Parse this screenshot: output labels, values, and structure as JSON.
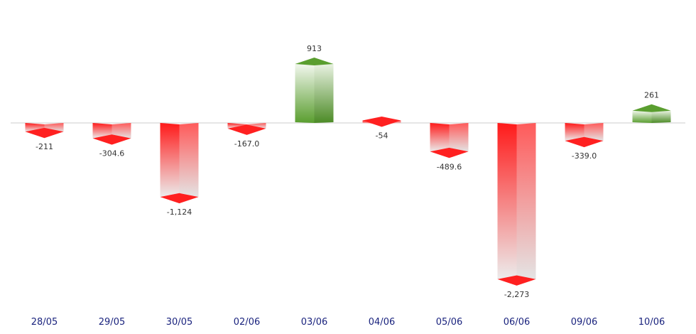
{
  "chart_data": {
    "type": "bar",
    "title": "",
    "xlabel": "",
    "ylabel": "",
    "categories": [
      "28/05",
      "29/05",
      "30/05",
      "02/06",
      "03/06",
      "04/06",
      "05/06",
      "06/06",
      "09/06",
      "10/06"
    ],
    "values": [
      -211,
      -304.6,
      -1124,
      -167.0,
      913,
      -54,
      -489.6,
      -2273,
      -339.0,
      261
    ],
    "value_labels": [
      "-211",
      "-304.6",
      "-1,124",
      "-167.0",
      "913",
      "-54",
      "-489.6",
      "-2,273",
      "-339.0",
      "261"
    ],
    "ylim": [
      -2273,
      913
    ],
    "grid": false,
    "legend": "none",
    "colors": {
      "positive": "#5a9e2f",
      "negative": "#ff1a1a",
      "baseline": "#cccccc",
      "category_text": "#1a237e"
    }
  }
}
